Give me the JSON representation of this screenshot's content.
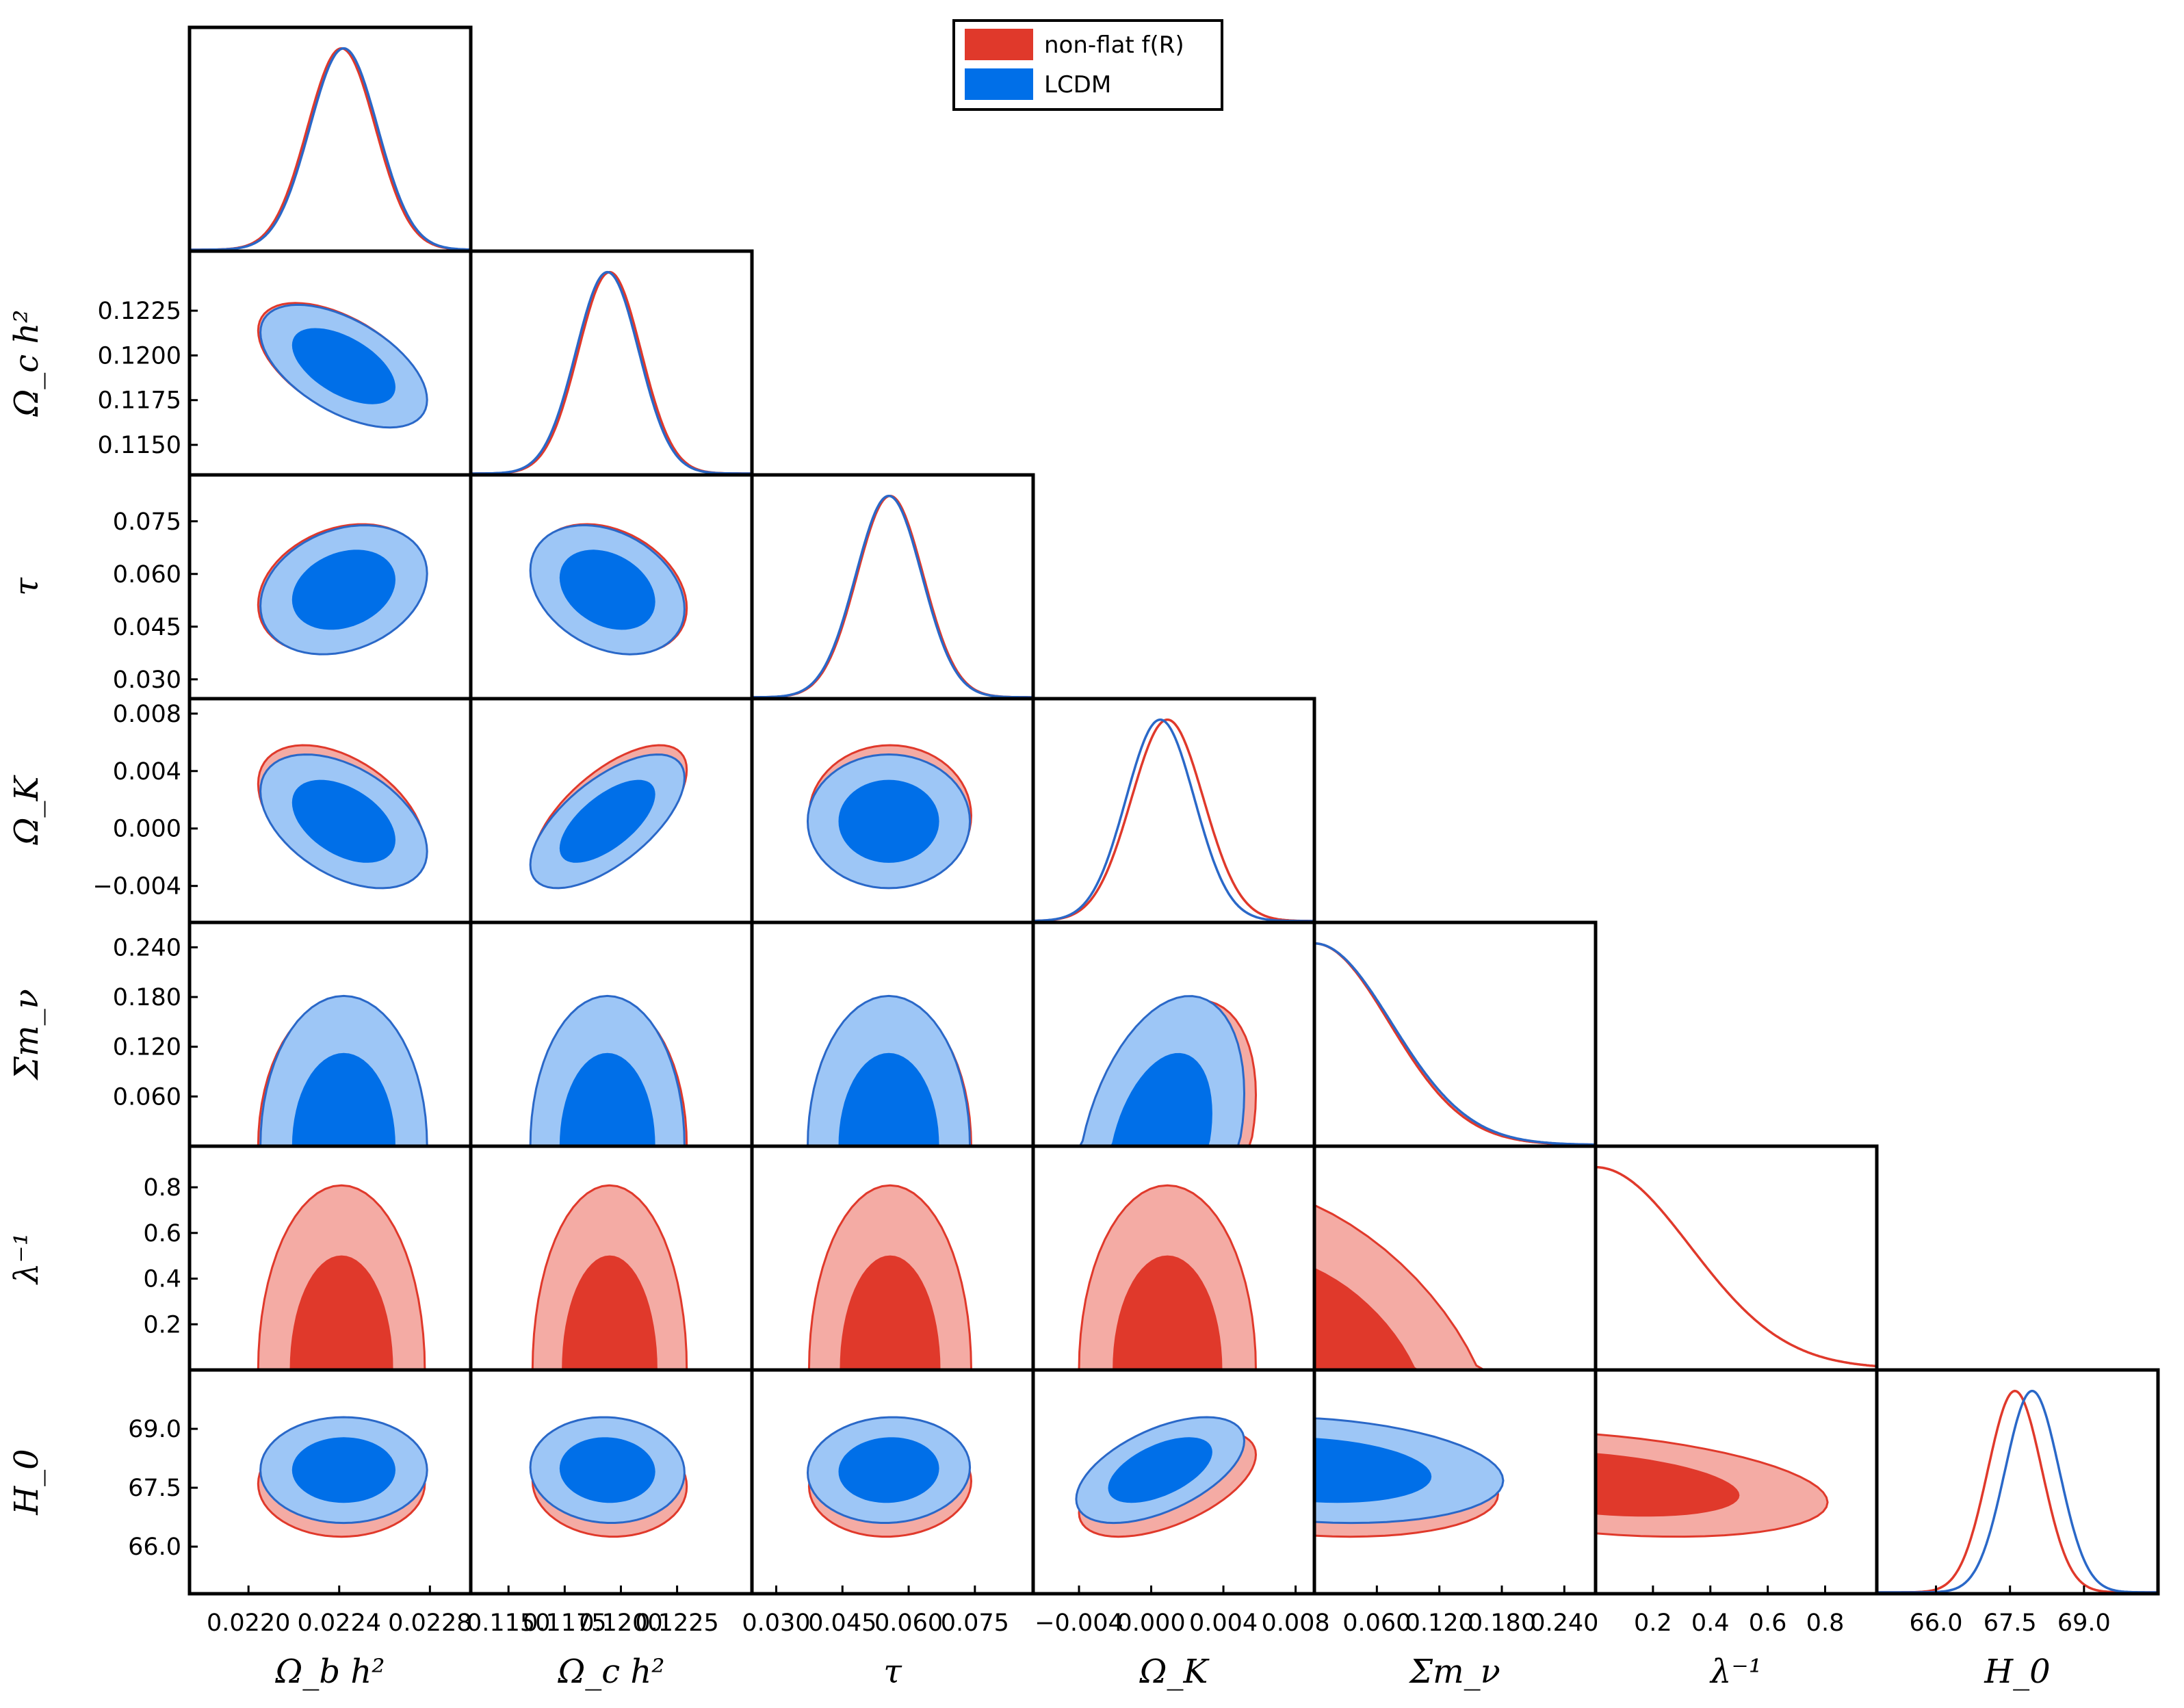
{
  "chart_data": {
    "type": "triangle-corner-plot",
    "title": "",
    "legend": {
      "placement": "top-center",
      "entries": [
        {
          "label": "non-flat f(R)",
          "color": "#e0392b"
        },
        {
          "label": "LCDM",
          "color": "#006fe8"
        }
      ]
    },
    "series_colors": {
      "nonflat_fill_inner": "#e0392b",
      "nonflat_fill_outer": "#f4aba4",
      "nonflat_line": "#e0392b",
      "lcdm_fill_inner": "#006fe8",
      "lcdm_fill_outer": "#9dc6f6",
      "lcdm_line": "#2a68c8"
    },
    "parameters": [
      {
        "key": "ombh2",
        "label": "Ω_b h²",
        "label_html": "Ω<tspan font-style='italic'>b</tspan>h²",
        "range": [
          0.02174,
          0.02298
        ],
        "ticks": [
          0.022,
          0.0224,
          0.0228
        ],
        "tick_labels": [
          "0.0220",
          "0.0224",
          "0.0228"
        ],
        "mean": {
          "nonflat": 0.02241,
          "lcdm": 0.02242
        },
        "sigma": {
          "nonflat": 0.00015,
          "lcdm": 0.00015
        },
        "lcdm_only": false
      },
      {
        "key": "omch2",
        "label": "Ω_c h²",
        "range": [
          0.11332,
          0.12583
        ],
        "ticks": [
          0.115,
          0.1175,
          0.12,
          0.1225
        ],
        "tick_labels": [
          "0.1150",
          "0.1175",
          "0.1200",
          "0.1225"
        ],
        "mean": {
          "nonflat": 0.1195,
          "lcdm": 0.1194
        },
        "sigma": {
          "nonflat": 0.0014,
          "lcdm": 0.0014
        },
        "lcdm_only": false
      },
      {
        "key": "tau",
        "label": "τ",
        "range": [
          0.0245,
          0.0882
        ],
        "ticks": [
          0.03,
          0.045,
          0.06,
          0.075
        ],
        "tick_labels": [
          "0.030",
          "0.045",
          "0.060",
          "0.075"
        ],
        "mean": {
          "nonflat": 0.0558,
          "lcdm": 0.0555
        },
        "sigma": {
          "nonflat": 0.0075,
          "lcdm": 0.0075
        },
        "lcdm_only": false
      },
      {
        "key": "omk",
        "label": "Ω_K",
        "range": [
          -0.00654,
          0.00904
        ],
        "ticks": [
          -0.004,
          0.0,
          0.004,
          0.008
        ],
        "tick_labels": [
          "−0.004",
          "0.000",
          "0.004",
          "0.008"
        ],
        "mean": {
          "nonflat": 0.0009,
          "lcdm": 0.0005
        },
        "sigma": {
          "nonflat": 0.002,
          "lcdm": 0.0019
        },
        "lcdm_only": false
      },
      {
        "key": "mnu",
        "label": "Σm_ν",
        "range": [
          0.0,
          0.27
        ],
        "ticks": [
          0.06,
          0.12,
          0.18,
          0.24
        ],
        "tick_labels": [
          "0.060",
          "0.120",
          "0.180",
          "0.240"
        ],
        "mean": {
          "nonflat": 0.0,
          "lcdm": 0.0
        },
        "sigma": {
          "nonflat": 0.072,
          "lcdm": 0.074
        },
        "lcdm_only": false
      },
      {
        "key": "lam",
        "label": "λ⁻¹",
        "range": [
          0.0,
          0.98
        ],
        "ticks": [
          0.2,
          0.4,
          0.6,
          0.8
        ],
        "tick_labels": [
          "0.2",
          "0.4",
          "0.6",
          "0.8"
        ],
        "mean": {
          "nonflat": 0.0,
          "lcdm": null
        },
        "sigma": {
          "nonflat": 0.33,
          "lcdm": null
        },
        "lcdm_only": false,
        "nonflat_only": true
      },
      {
        "key": "H0",
        "label": "H_0",
        "range": [
          64.8,
          70.5
        ],
        "ticks": [
          66.0,
          67.5,
          69.0
        ],
        "tick_labels": [
          "66.0",
          "67.5",
          "69.0"
        ],
        "mean": {
          "nonflat": 67.6,
          "lcdm": 67.95
        },
        "sigma": {
          "nonflat": 0.55,
          "lcdm": 0.55
        },
        "lcdm_only": false
      }
    ],
    "axis_labels": {
      "x": [
        "Ω_b h²",
        "Ω_c h²",
        "τ",
        "Ω_K",
        "Σm_ν",
        "λ⁻¹",
        "H_0"
      ],
      "y": [
        "Ω_c h²",
        "τ",
        "Ω_K",
        "Σm_ν",
        "λ⁻¹",
        "H_0"
      ]
    }
  }
}
